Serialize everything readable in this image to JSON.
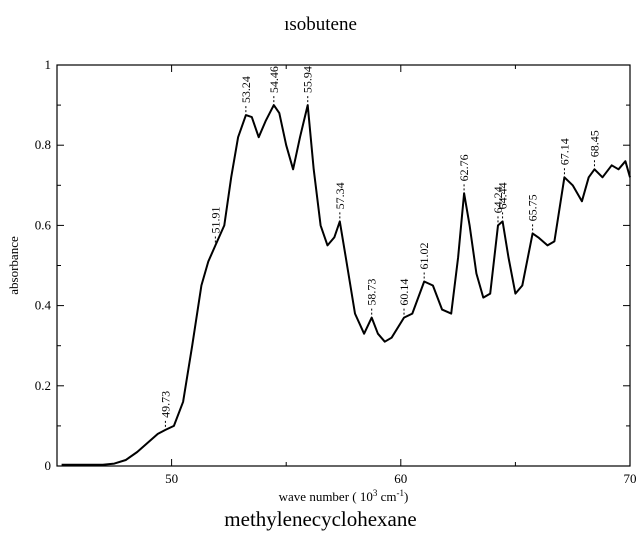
{
  "header": {
    "top_title": "ısobutene"
  },
  "footer": {
    "bottom_title": "methylenecyclohexane"
  },
  "chart_data": {
    "type": "line",
    "xlabel": "wave number ( 10",
    "xlabel_sup1": "3",
    "xlabel_mid": " cm",
    "xlabel_sup2": "-1",
    "xlabel_end": ")",
    "ylabel": "absorbance",
    "xlim": [
      45,
      70
    ],
    "ylim": [
      0,
      1
    ],
    "xticks": [
      50,
      60,
      70
    ],
    "xtick_labels": [
      "50",
      "60",
      "70"
    ],
    "yticks": [
      0,
      0.2,
      0.4,
      0.6,
      0.8,
      1
    ],
    "ytick_labels": [
      "0",
      "0.2",
      "0.4",
      "0.6",
      "0.8",
      "1"
    ],
    "series": [
      {
        "color": "#000000",
        "x": [
          45.2,
          46,
          47,
          47.5,
          48,
          48.5,
          49,
          49.4,
          49.73,
          50.1,
          50.5,
          50.9,
          51.3,
          51.6,
          51.91,
          52.3,
          52.6,
          52.9,
          53.24,
          53.5,
          53.8,
          54.1,
          54.46,
          54.7,
          55,
          55.3,
          55.6,
          55.94,
          56.2,
          56.5,
          56.8,
          57.1,
          57.34,
          57.6,
          58,
          58.4,
          58.73,
          59,
          59.3,
          59.6,
          60.14,
          60.5,
          61.02,
          61.4,
          61.8,
          62.2,
          62.5,
          62.76,
          63,
          63.3,
          63.6,
          63.9,
          64.24,
          64.44,
          64.7,
          65,
          65.3,
          65.75,
          66,
          66.4,
          66.7,
          67.14,
          67.5,
          67.9,
          68.2,
          68.45,
          68.8,
          69.2,
          69.5,
          69.8,
          70
        ],
        "y": [
          0.003,
          0.003,
          0.003,
          0.006,
          0.015,
          0.035,
          0.06,
          0.08,
          0.09,
          0.1,
          0.16,
          0.3,
          0.45,
          0.51,
          0.55,
          0.6,
          0.72,
          0.82,
          0.875,
          0.87,
          0.82,
          0.86,
          0.9,
          0.88,
          0.8,
          0.74,
          0.82,
          0.9,
          0.74,
          0.6,
          0.55,
          0.57,
          0.61,
          0.52,
          0.38,
          0.33,
          0.37,
          0.33,
          0.31,
          0.32,
          0.37,
          0.38,
          0.46,
          0.45,
          0.39,
          0.38,
          0.52,
          0.68,
          0.6,
          0.48,
          0.42,
          0.43,
          0.6,
          0.61,
          0.52,
          0.43,
          0.45,
          0.58,
          0.57,
          0.55,
          0.56,
          0.72,
          0.7,
          0.66,
          0.72,
          0.74,
          0.72,
          0.75,
          0.74,
          0.76,
          0.72
        ]
      }
    ],
    "annotations": [
      {
        "text": "49.73",
        "x": 49.73,
        "y": 0.09
      },
      {
        "text": "51.91",
        "x": 51.91,
        "y": 0.55
      },
      {
        "text": "53.24",
        "x": 53.24,
        "y": 0.875
      },
      {
        "text": "54.46",
        "x": 54.46,
        "y": 0.9
      },
      {
        "text": "55.94",
        "x": 55.94,
        "y": 0.9
      },
      {
        "text": "57.34",
        "x": 57.34,
        "y": 0.61
      },
      {
        "text": "58.73",
        "x": 58.73,
        "y": 0.37
      },
      {
        "text": "60.14",
        "x": 60.14,
        "y": 0.37
      },
      {
        "text": "61.02",
        "x": 61.02,
        "y": 0.46
      },
      {
        "text": "62.76",
        "x": 62.76,
        "y": 0.68
      },
      {
        "text": "64.24",
        "x": 64.24,
        "y": 0.6
      },
      {
        "text": "64.44",
        "x": 64.44,
        "y": 0.61
      },
      {
        "text": "65.75",
        "x": 65.75,
        "y": 0.58
      },
      {
        "text": "67.14",
        "x": 67.14,
        "y": 0.72
      },
      {
        "text": "68.45",
        "x": 68.45,
        "y": 0.74
      }
    ],
    "grid": false,
    "legend": "none"
  }
}
